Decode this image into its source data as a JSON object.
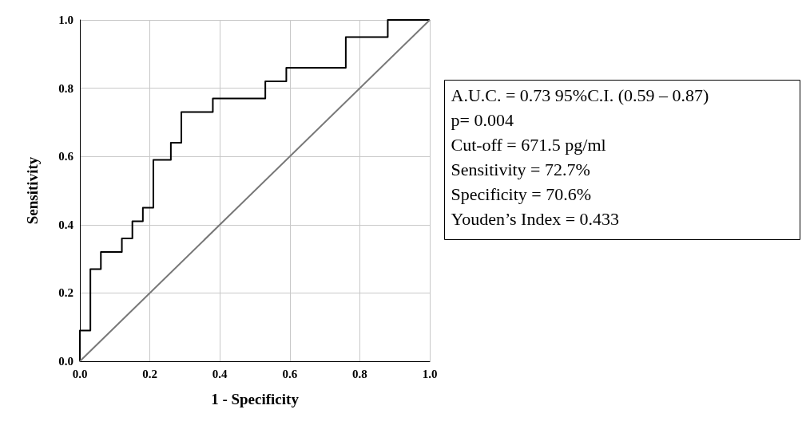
{
  "chart_data": {
    "type": "line",
    "xlabel": "1 - Specificity",
    "ylabel": "Sensitivity",
    "xlim": [
      0,
      1
    ],
    "ylim": [
      0,
      1
    ],
    "xticks": [
      {
        "value": 0,
        "label": "0.0"
      },
      {
        "value": 0.2,
        "label": "0.2"
      },
      {
        "value": 0.4,
        "label": "0.4"
      },
      {
        "value": 0.6,
        "label": "0.6"
      },
      {
        "value": 0.8,
        "label": "0.8"
      },
      {
        "value": 1,
        "label": "1.0"
      }
    ],
    "yticks": [
      {
        "value": 0,
        "label": "0.0"
      },
      {
        "value": 0.2,
        "label": "0.2"
      },
      {
        "value": 0.4,
        "label": "0.4"
      },
      {
        "value": 0.6,
        "label": "0.6"
      },
      {
        "value": 0.8,
        "label": "0.8"
      },
      {
        "value": 1,
        "label": "1.0"
      }
    ],
    "grid": true,
    "marker": "none",
    "line_style": "solid",
    "series": [
      {
        "color": "#000000",
        "x": [
          0,
          0,
          0.03,
          0.03,
          0.06,
          0.06,
          0.12,
          0.12,
          0.15,
          0.15,
          0.18,
          0.18,
          0.21,
          0.21,
          0.26,
          0.26,
          0.29,
          0.29,
          0.38,
          0.38,
          0.53,
          0.53,
          0.59,
          0.59,
          0.76,
          0.76,
          0.88,
          0.88,
          1
        ],
        "values": [
          0,
          0.09,
          0.09,
          0.27,
          0.27,
          0.32,
          0.32,
          0.36,
          0.36,
          0.41,
          0.41,
          0.45,
          0.45,
          0.59,
          0.59,
          0.64,
          0.64,
          0.73,
          0.73,
          0.77,
          0.77,
          0.82,
          0.82,
          0.86,
          0.86,
          0.95,
          0.95,
          1,
          1
        ]
      },
      {
        "color": "#777777",
        "x": [
          0,
          1
        ],
        "values": [
          0,
          1
        ]
      }
    ],
    "annotations": [
      "A.U.C. = 0.73 95%C.I. (0.59 – 0.87)",
      "p= 0.004",
      "Cut-off = 671.5 pg/ml",
      "Sensitivity = 72.7%",
      "Specificity = 70.6%",
      "Youden’s Index = 0.433"
    ]
  }
}
